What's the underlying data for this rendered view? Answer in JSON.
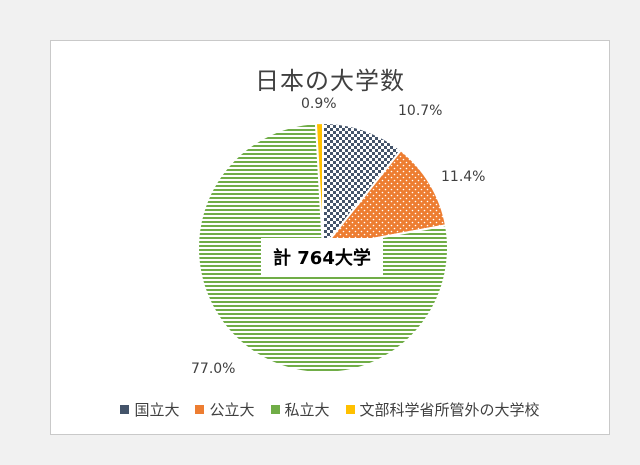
{
  "chart_data": {
    "type": "pie",
    "title": "日本の大学数",
    "categories": [
      "国立大",
      "公立大",
      "私立大",
      "文部科学省所管外の大学校"
    ],
    "values": [
      10.7,
      11.4,
      77.0,
      0.9
    ],
    "data_labels": [
      "10.7%",
      "11.4%",
      "77.0%",
      "0.9%"
    ],
    "colors": [
      "#44546a",
      "#ed7d31",
      "#70ad47",
      "#ffc000"
    ],
    "annotation": "計 764大学",
    "legend_position": "bottom"
  }
}
